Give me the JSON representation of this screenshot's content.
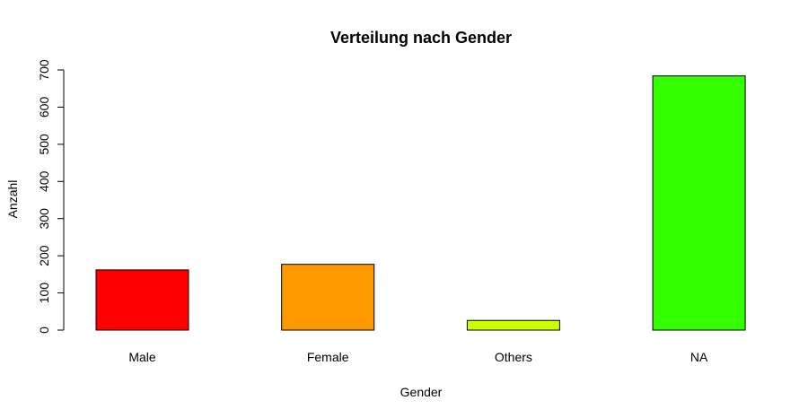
{
  "chart_data": {
    "type": "bar",
    "title": "Verteilung nach Gender",
    "xlabel": "Gender",
    "ylabel": "Anzahl",
    "categories": [
      "Male",
      "Female",
      "Others",
      "NA"
    ],
    "values": [
      162,
      177,
      26,
      684
    ],
    "colors": [
      "#FF0000",
      "#FF9900",
      "#CCFF00",
      "#33FF00"
    ],
    "ylim": [
      0,
      700
    ],
    "yticks": [
      0,
      100,
      200,
      300,
      400,
      500,
      600,
      700
    ],
    "grid": false,
    "legend": "none"
  }
}
